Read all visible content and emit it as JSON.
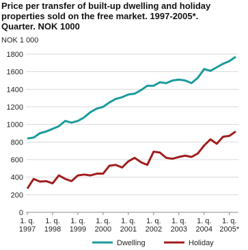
{
  "chart_data": {
    "type": "line",
    "title": [
      "Price per transfer of built-up dwelling and holiday",
      "properties sold on the free market. 1997-2005*.",
      "Quarter. NOK 1000"
    ],
    "y_label": "NOK 1 000",
    "categories": [
      "1. q.\n1997",
      null,
      null,
      null,
      "1. q.\n1998",
      null,
      null,
      null,
      "1. q.\n1999",
      null,
      null,
      null,
      "1. q.\n2000",
      null,
      null,
      null,
      "1. q.\n2001",
      null,
      null,
      null,
      "1. q.\n2002",
      null,
      null,
      null,
      "1. q.\n2003",
      null,
      null,
      null,
      "1. q.\n2004",
      null,
      null,
      null,
      "1. q.\n2005*",
      null
    ],
    "series": [
      {
        "name": "Dwelling",
        "color": "#1a9a9c",
        "values": [
          840,
          850,
          900,
          920,
          950,
          980,
          1040,
          1020,
          1040,
          1080,
          1140,
          1180,
          1200,
          1250,
          1290,
          1310,
          1340,
          1350,
          1390,
          1440,
          1440,
          1480,
          1470,
          1500,
          1510,
          1500,
          1470,
          1530,
          1630,
          1610,
          1650,
          1690,
          1720,
          1770
        ]
      },
      {
        "name": "Holiday",
        "color": "#a01c1c",
        "values": [
          270,
          380,
          350,
          355,
          330,
          420,
          380,
          355,
          420,
          430,
          420,
          440,
          440,
          530,
          540,
          510,
          580,
          620,
          570,
          540,
          690,
          680,
          620,
          610,
          630,
          645,
          630,
          670,
          760,
          830,
          780,
          860,
          870,
          920
        ]
      }
    ],
    "ylim": [
      0,
      1800
    ],
    "yticks": [
      0,
      200,
      400,
      600,
      800,
      1000,
      1200,
      1400,
      1600,
      1800
    ],
    "grid": true,
    "legend": "bottom"
  }
}
